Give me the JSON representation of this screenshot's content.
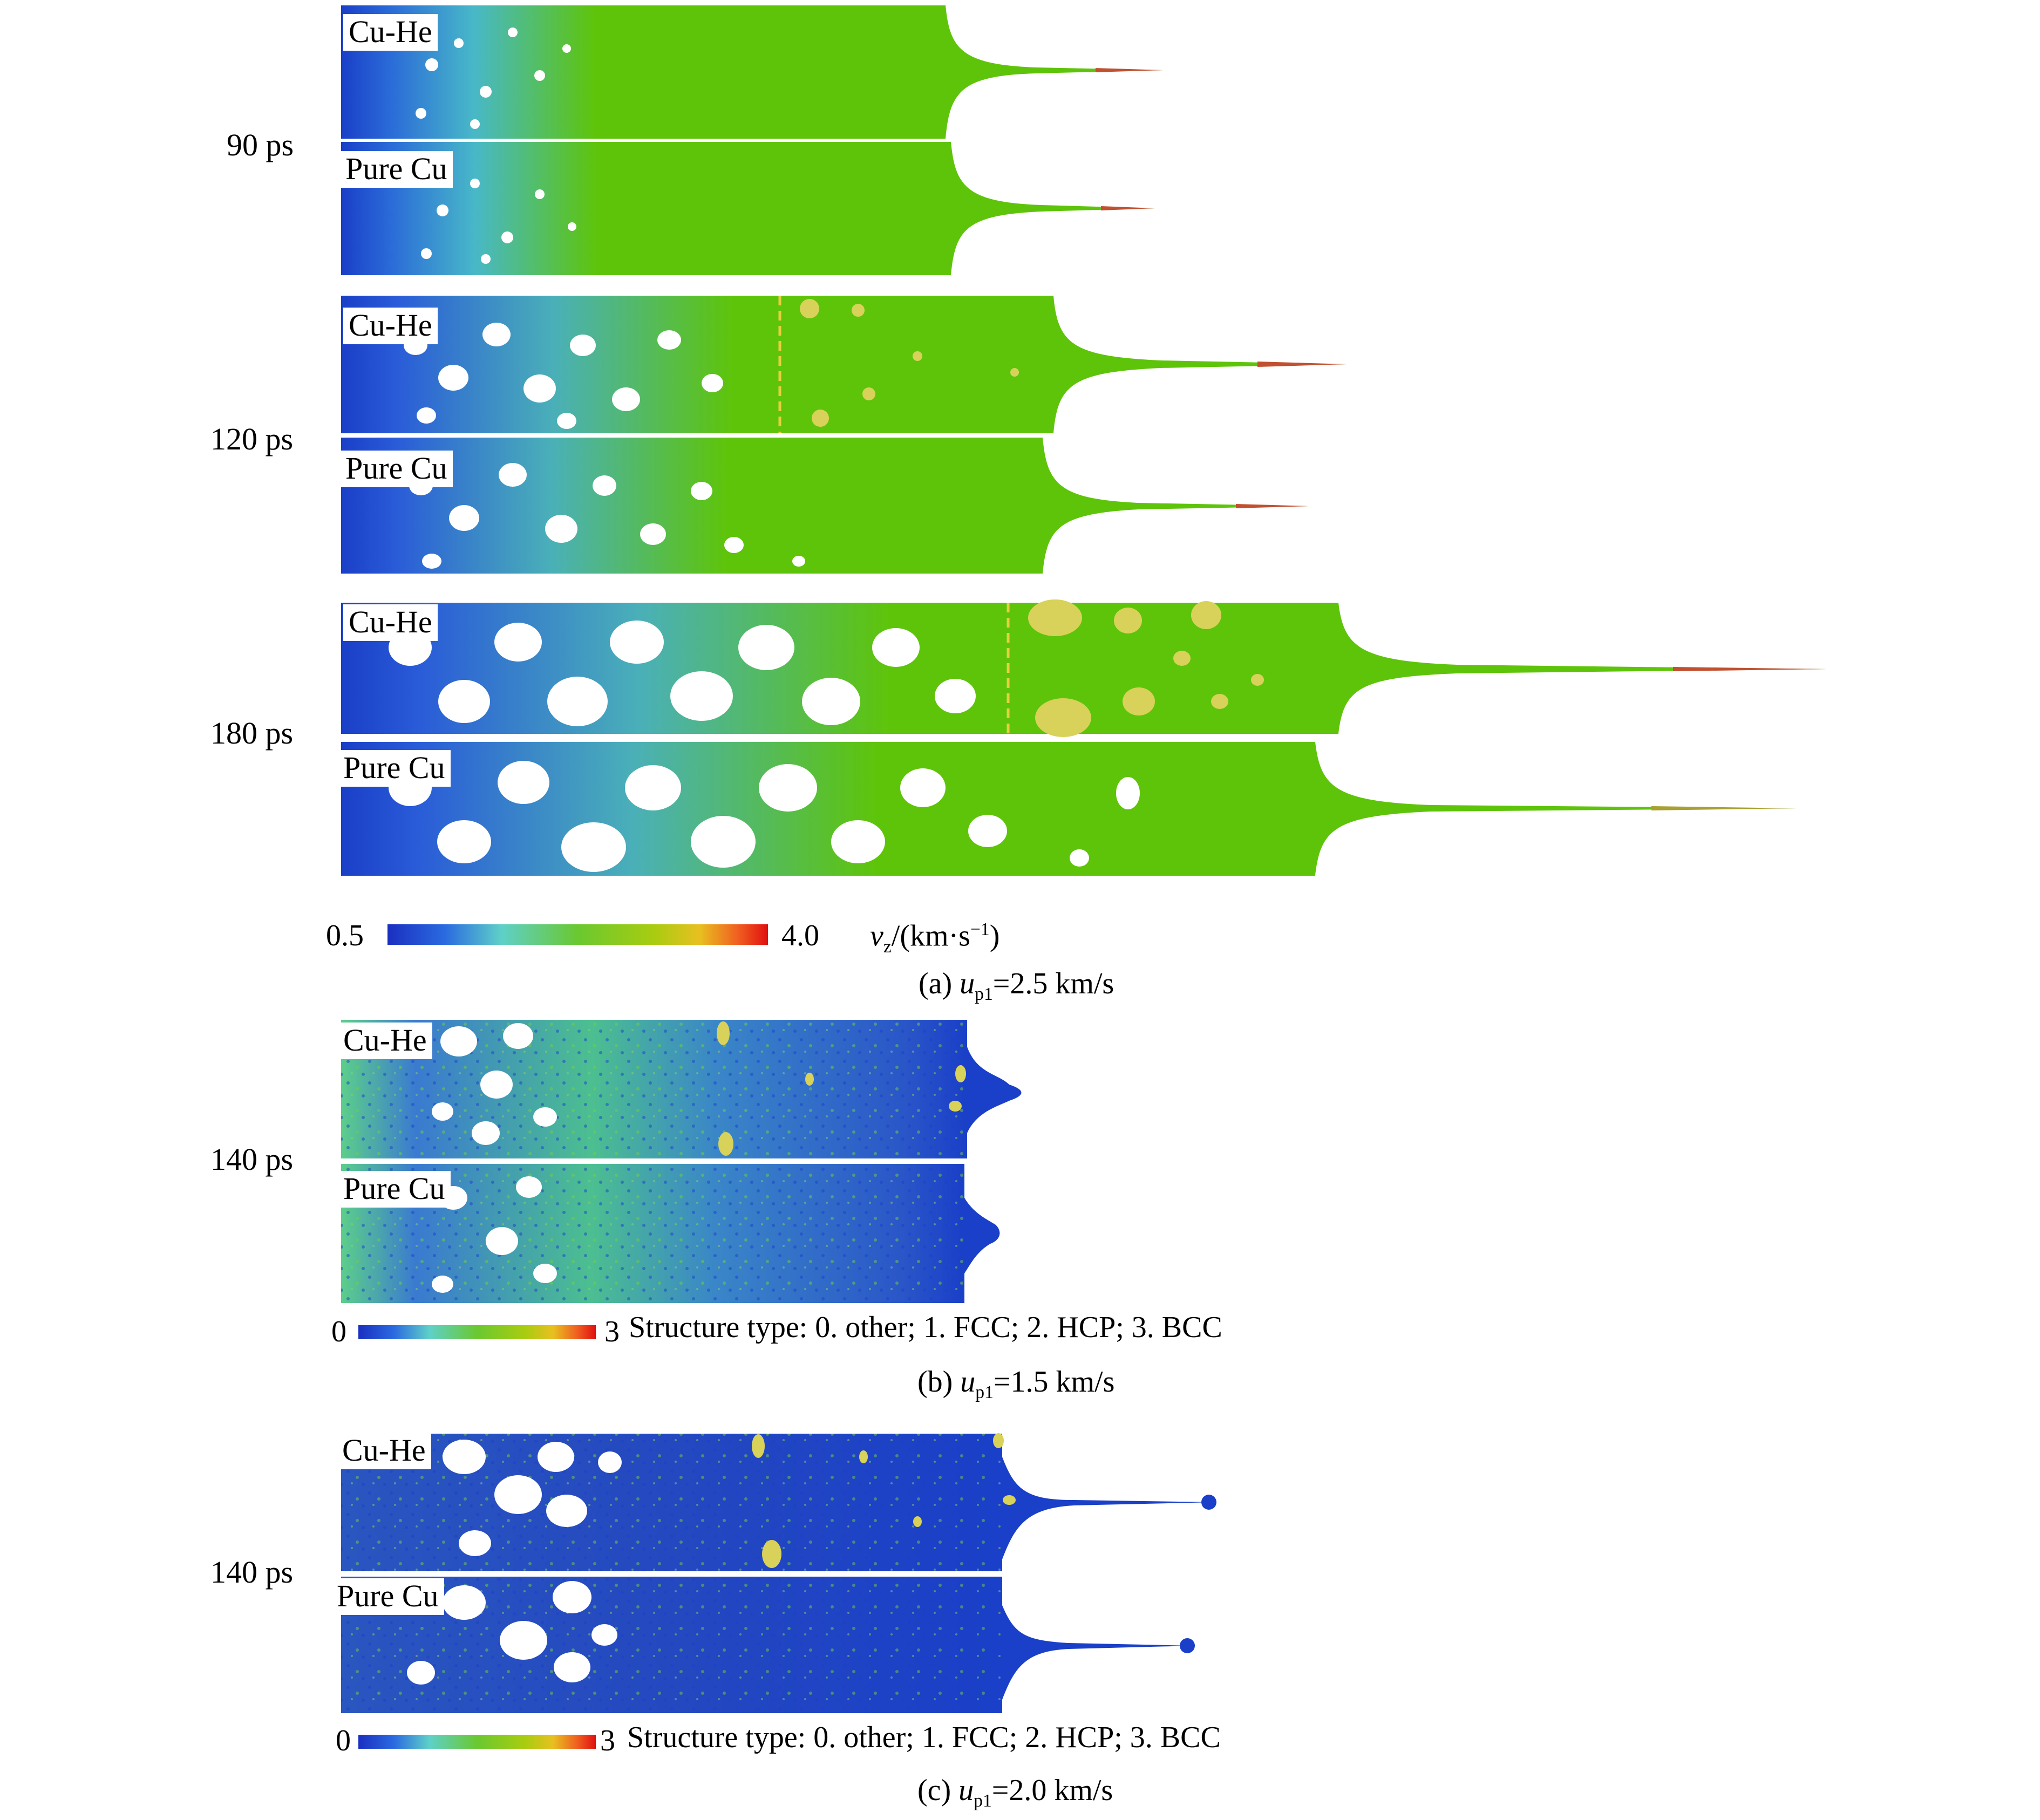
{
  "panel_a": {
    "rows": [
      {
        "time": "90 ps",
        "top_label": "Cu-He",
        "bottom_label": "Pure Cu"
      },
      {
        "time": "120 ps",
        "top_label": "Cu-He",
        "bottom_label": "Pure Cu"
      },
      {
        "time": "180 ps",
        "top_label": "Cu-He",
        "bottom_label": "Pure Cu"
      }
    ],
    "colorbar": {
      "min": "0.5",
      "max": "4.0",
      "label_var": "v",
      "label_sub": "z",
      "label_rest": "/(km·s",
      "label_sup": "−1",
      "label_end": ")"
    },
    "caption": {
      "prefix": "(a) ",
      "var": "u",
      "sub": "p1",
      "rest": "=2.5 km/s"
    }
  },
  "panel_b": {
    "time": "140 ps",
    "top_label": "Cu-He",
    "bottom_label": "Pure Cu",
    "colorbar": {
      "min": "0",
      "max": "3",
      "label": "Structure type: 0. other; 1. FCC; 2. HCP; 3. BCC"
    },
    "caption": {
      "prefix": "(b) ",
      "var": "u",
      "sub": "p1",
      "rest": "=1.5 km/s"
    }
  },
  "panel_c": {
    "time": "140 ps",
    "top_label": "Cu-He",
    "bottom_label": "Pure Cu",
    "colorbar": {
      "min": "0",
      "max": "3",
      "label": "Structure type: 0. other; 1. FCC; 2. HCP; 3. BCC"
    },
    "caption": {
      "prefix": "(c) ",
      "var": "u",
      "sub": "p1",
      "rest": "=2.0 km/s"
    }
  },
  "colors": {
    "blue": "#1a3fc8",
    "teal": "#4fc3b0",
    "green": "#5ec40a",
    "yellow": "#d8d25a",
    "orange": "#e07a1a",
    "red": "#d01a1a"
  }
}
